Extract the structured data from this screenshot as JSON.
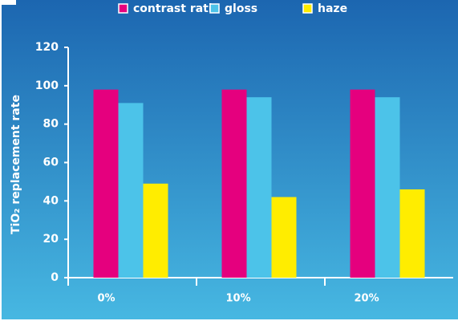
{
  "chart_data": {
    "type": "bar",
    "y_label": "TiO₂ replacement rate",
    "categories": [
      "0%",
      "10%",
      "20%"
    ],
    "series": [
      {
        "name": "contrast ratio",
        "color": "#e5007e",
        "values": [
          98,
          98,
          98
        ]
      },
      {
        "name": "gloss",
        "color": "#4cc3e9",
        "values": [
          91,
          94,
          94
        ]
      },
      {
        "name": "haze",
        "color": "#ffed00",
        "values": [
          49,
          42,
          46
        ]
      }
    ],
    "ylim": [
      0,
      120
    ],
    "yticks": [
      0,
      20,
      40,
      60,
      80,
      100,
      120
    ],
    "legend": "top"
  }
}
